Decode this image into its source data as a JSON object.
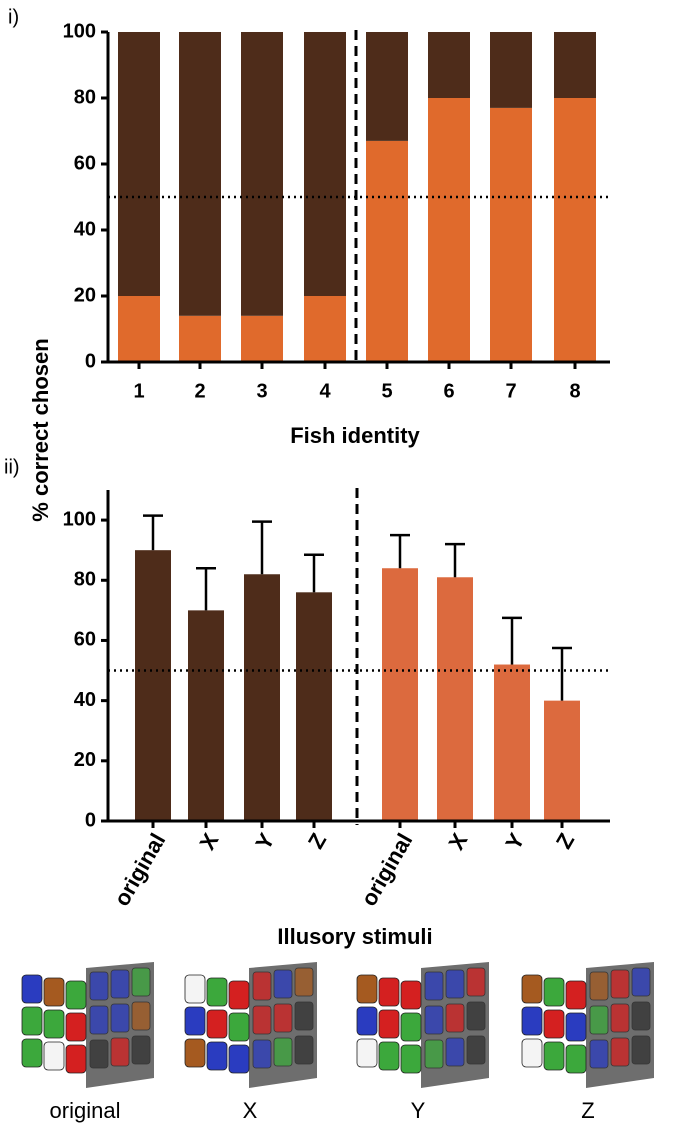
{
  "shared_ylabel": "% correct chosen",
  "chart_data": [
    {
      "type": "stacked_bar",
      "panel_label": "i)",
      "xlabel": "Fish identity",
      "categories": [
        "1",
        "2",
        "3",
        "4",
        "5",
        "6",
        "7",
        "8"
      ],
      "series": [
        {
          "color": "#e06a2c",
          "values": [
            20,
            14,
            14,
            20,
            67,
            80,
            77,
            80
          ]
        },
        {
          "color": "#4e2c1a",
          "values": [
            80,
            86,
            86,
            80,
            33,
            20,
            23,
            20
          ]
        }
      ],
      "ylim": [
        0,
        100
      ],
      "yticks": [
        0,
        20,
        40,
        60,
        80,
        100
      ],
      "hline": 50
    },
    {
      "type": "bar",
      "panel_label": "ii)",
      "xlabel": "Illusory stimuli",
      "categories": [
        "original",
        "X",
        "Y",
        "Z",
        "original",
        "X",
        "Y",
        "Z"
      ],
      "values": [
        90,
        70,
        82,
        76,
        84,
        81,
        52,
        40
      ],
      "errors": [
        11.5,
        14,
        17.5,
        12.5,
        11,
        11,
        15.5,
        17.5
      ],
      "colors": [
        "#4e2c1a",
        "#4e2c1a",
        "#4e2c1a",
        "#4e2c1a",
        "#dc6a3e",
        "#dc6a3e",
        "#dc6a3e",
        "#dc6a3e"
      ],
      "ylim": [
        0,
        110
      ],
      "yticks": [
        0,
        20,
        40,
        60,
        80,
        100
      ],
      "hline": 50
    }
  ],
  "stimuli": [
    "original",
    "X",
    "Y",
    "Z"
  ]
}
